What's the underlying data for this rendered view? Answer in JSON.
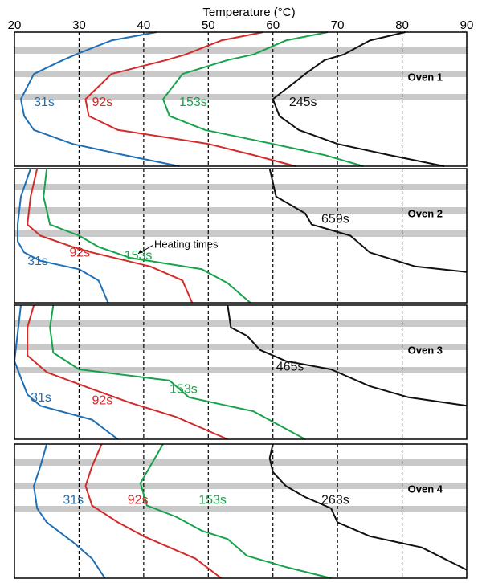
{
  "chart_data": {
    "type": "line",
    "xlabel": "Temperature (°C)",
    "x_ticks": [
      20,
      30,
      40,
      50,
      60,
      70,
      80,
      90
    ],
    "xlim": [
      20,
      90
    ],
    "grid": "vertical dashed lines at 30, 40, 50, 60, 70, 80",
    "colors": {
      "31s": "#1f6fb4",
      "92s": "#d42a2a",
      "153s": "#16a34a",
      "long": "#111111",
      "band": "#c9c9c9"
    },
    "annotation": "Heating times",
    "panels": [
      {
        "title": "Oven 1",
        "series": [
          {
            "name": "31s",
            "points": [
              [
                42,
                0
              ],
              [
                35,
                3
              ],
              [
                29.5,
                8
              ],
              [
                27.5,
                10
              ],
              [
                23,
                15
              ],
              [
                21,
                24
              ],
              [
                21.5,
                30
              ],
              [
                23,
                35
              ],
              [
                29,
                40
              ],
              [
                37,
                44
              ],
              [
                45.5,
                48
              ]
            ]
          },
          {
            "name": "92s",
            "points": [
              [
                58.5,
                0
              ],
              [
                52,
                3
              ],
              [
                46.5,
                8
              ],
              [
                43.5,
                10
              ],
              [
                35,
                15
              ],
              [
                31,
                24
              ],
              [
                31.5,
                30
              ],
              [
                36,
                35
              ],
              [
                50,
                40
              ],
              [
                57,
                44
              ],
              [
                63.5,
                48
              ]
            ]
          },
          {
            "name": "153s",
            "points": [
              [
                68.5,
                0
              ],
              [
                62,
                3
              ],
              [
                57,
                8
              ],
              [
                53,
                10
              ],
              [
                46,
                15
              ],
              [
                43,
                24
              ],
              [
                44,
                30
              ],
              [
                49.5,
                35
              ],
              [
                60,
                40
              ],
              [
                68,
                44
              ],
              [
                74,
                48
              ]
            ]
          },
          {
            "name": "245s",
            "points": [
              [
                80.5,
                0
              ],
              [
                75,
                3
              ],
              [
                71,
                8
              ],
              [
                68,
                10
              ],
              [
                65,
                15
              ],
              [
                60,
                24
              ],
              [
                61,
                30
              ],
              [
                64,
                35
              ],
              [
                70,
                40
              ],
              [
                78,
                44
              ],
              [
                86.5,
                48
              ]
            ]
          }
        ]
      },
      {
        "title": "Oven 2",
        "series": [
          {
            "name": "31s",
            "points": [
              [
                22.5,
                0
              ],
              [
                21,
                10
              ],
              [
                20.5,
                20
              ],
              [
                20.5,
                26
              ],
              [
                21.5,
                30
              ],
              [
                24,
                33
              ],
              [
                30,
                36
              ],
              [
                33,
                40
              ],
              [
                34.5,
                48
              ]
            ]
          },
          {
            "name": "92s",
            "points": [
              [
                23.5,
                0
              ],
              [
                22.5,
                10
              ],
              [
                22,
                20
              ],
              [
                24,
                24
              ],
              [
                29,
                28
              ],
              [
                32,
                30
              ],
              [
                41,
                35
              ],
              [
                46,
                40
              ],
              [
                47.5,
                48
              ]
            ]
          },
          {
            "name": "153s",
            "points": [
              [
                25,
                0
              ],
              [
                24.5,
                10
              ],
              [
                25.5,
                20
              ],
              [
                30,
                24
              ],
              [
                33,
                28
              ],
              [
                38,
                32
              ],
              [
                49,
                36
              ],
              [
                53,
                41
              ],
              [
                56.5,
                48
              ]
            ]
          },
          {
            "name": "659s",
            "points": [
              [
                59.5,
                0
              ],
              [
                60.5,
                10
              ],
              [
                65,
                16
              ],
              [
                66,
                20
              ],
              [
                72,
                24
              ],
              [
                74,
                28
              ],
              [
                75,
                30
              ],
              [
                82,
                35
              ],
              [
                90,
                37
              ]
            ]
          }
        ]
      },
      {
        "title": "Oven 3",
        "series": [
          {
            "name": "31s",
            "points": [
              [
                21,
                0
              ],
              [
                20.5,
                10
              ],
              [
                20,
                20
              ],
              [
                21,
                26
              ],
              [
                22,
                32
              ],
              [
                24,
                36
              ],
              [
                32,
                41
              ],
              [
                36,
                48
              ]
            ]
          },
          {
            "name": "92s",
            "points": [
              [
                23,
                0
              ],
              [
                22,
                8
              ],
              [
                22,
                18
              ],
              [
                25,
                24
              ],
              [
                32,
                30
              ],
              [
                38,
                35
              ],
              [
                45,
                40
              ],
              [
                53,
                48
              ]
            ]
          },
          {
            "name": "153s",
            "points": [
              [
                26,
                0
              ],
              [
                25.5,
                8
              ],
              [
                26,
                17
              ],
              [
                30,
                23
              ],
              [
                44,
                27
              ],
              [
                47,
                33
              ],
              [
                51,
                35
              ],
              [
                57,
                38
              ],
              [
                65,
                48
              ]
            ]
          },
          {
            "name": "465s",
            "points": [
              [
                53,
                0
              ],
              [
                53.5,
                8
              ],
              [
                56,
                11
              ],
              [
                58,
                16
              ],
              [
                62,
                20
              ],
              [
                69,
                23
              ],
              [
                75,
                29
              ],
              [
                81,
                33
              ],
              [
                90,
                36
              ]
            ]
          }
        ]
      },
      {
        "title": "Oven 4",
        "series": [
          {
            "name": "31s",
            "points": [
              [
                25,
                0
              ],
              [
                24,
                8
              ],
              [
                23,
                15
              ],
              [
                23.5,
                23
              ],
              [
                25,
                28
              ],
              [
                29,
                35
              ],
              [
                32,
                41
              ],
              [
                34,
                48
              ]
            ]
          },
          {
            "name": "92s",
            "points": [
              [
                33.5,
                0
              ],
              [
                32,
                8
              ],
              [
                31,
                15
              ],
              [
                32,
                22
              ],
              [
                36,
                28
              ],
              [
                40,
                33
              ],
              [
                45,
                38
              ],
              [
                48,
                41
              ],
              [
                52,
                48
              ]
            ]
          },
          {
            "name": "153s",
            "points": [
              [
                43,
                0
              ],
              [
                41,
                8
              ],
              [
                39.5,
                14
              ],
              [
                40.5,
                22
              ],
              [
                45,
                26
              ],
              [
                49,
                31
              ],
              [
                53,
                34
              ],
              [
                56,
                40
              ],
              [
                62,
                44
              ],
              [
                69,
                48
              ]
            ]
          },
          {
            "name": "263s",
            "points": [
              [
                60,
                0
              ],
              [
                59.5,
                5
              ],
              [
                60,
                10
              ],
              [
                62,
                15
              ],
              [
                65,
                19
              ],
              [
                69,
                23
              ],
              [
                70,
                28
              ],
              [
                75,
                33
              ],
              [
                83,
                37
              ],
              [
                90,
                45
              ]
            ]
          }
        ]
      }
    ]
  }
}
